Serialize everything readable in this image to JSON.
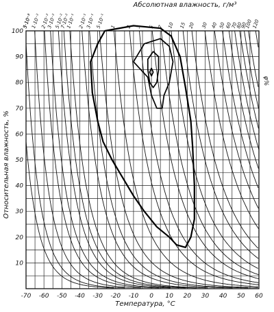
{
  "chart_data": {
    "type": "line",
    "title": "Абсолютная влажность, г/м³",
    "xlabel": "Температура, °С",
    "ylabel": "Относительная влажность, %",
    "right_label": "φ%",
    "xlim": [
      -70,
      60
    ],
    "ylim": [
      0,
      100
    ],
    "x_ticks": [
      -70,
      -60,
      -50,
      -40,
      -30,
      -20,
      -10,
      0,
      10,
      20,
      30,
      40,
      50,
      60
    ],
    "y_ticks": [
      10,
      20,
      30,
      40,
      50,
      60,
      70,
      80,
      90,
      100
    ],
    "x_tick_labels": [
      "-70",
      "-60",
      "-50",
      "-40",
      "-30",
      "-20",
      "-10",
      "0",
      "10",
      "20",
      "30",
      "40",
      "50",
      "60"
    ],
    "y_tick_labels": [
      "10",
      "20",
      "30",
      "40",
      "50",
      "60",
      "70",
      "80",
      "90",
      "100"
    ],
    "grid": true,
    "absolute_humidity_lines": [
      {
        "label": "3·10⁻³",
        "value": 0.003
      },
      {
        "label": "5·10⁻³",
        "value": 0.005
      },
      {
        "label": "1·10⁻²",
        "value": 0.01
      },
      {
        "label": "2·10⁻²",
        "value": 0.02
      },
      {
        "label": "3·10⁻²",
        "value": 0.03
      },
      {
        "label": "5·10⁻²",
        "value": 0.05
      },
      {
        "label": "7·10⁻²",
        "value": 0.07
      },
      {
        "label": "1·10⁻¹",
        "value": 0.1
      },
      {
        "label": "2·10⁻¹",
        "value": 0.2
      },
      {
        "label": "3·10⁻¹",
        "value": 0.3
      },
      {
        "label": "5·10⁻¹",
        "value": 0.5
      },
      {
        "label": "1",
        "value": 1
      },
      {
        "label": "2",
        "value": 2
      },
      {
        "label": "3",
        "value": 3
      },
      {
        "label": "5",
        "value": 5
      },
      {
        "label": "7",
        "value": 7
      },
      {
        "label": "10",
        "value": 10
      },
      {
        "label": "15",
        "value": 15
      },
      {
        "label": "20",
        "value": 20
      },
      {
        "label": "30",
        "value": 30
      },
      {
        "label": "40",
        "value": 40
      },
      {
        "label": "50",
        "value": 50
      },
      {
        "label": "60",
        "value": 60
      },
      {
        "label": "70",
        "value": 70
      },
      {
        "label": "80",
        "value": 80
      },
      {
        "label": "90",
        "value": 90
      },
      {
        "label": "100",
        "value": 100
      },
      {
        "label": "120",
        "value": 120
      }
    ],
    "contours": [
      {
        "name": "outer",
        "points": [
          [
            -26,
            100
          ],
          [
            -30,
            95
          ],
          [
            -34,
            88
          ],
          [
            -33,
            76
          ],
          [
            -30,
            65
          ],
          [
            -27,
            57
          ],
          [
            -22,
            50
          ],
          [
            -16,
            43
          ],
          [
            -10,
            36
          ],
          [
            -4,
            30
          ],
          [
            3,
            24
          ],
          [
            10,
            20
          ],
          [
            14,
            17
          ],
          [
            19,
            16
          ],
          [
            22,
            20
          ],
          [
            24,
            27
          ],
          [
            24,
            40
          ],
          [
            23,
            55
          ],
          [
            22,
            65
          ],
          [
            19,
            78
          ],
          [
            16,
            90
          ],
          [
            11,
            98
          ],
          [
            5,
            101
          ],
          [
            -10,
            102
          ],
          [
            -26,
            100
          ]
        ]
      },
      {
        "name": "middle",
        "points": [
          [
            -10,
            88
          ],
          [
            -4,
            95
          ],
          [
            5,
            97
          ],
          [
            10,
            94
          ],
          [
            12,
            88
          ],
          [
            10,
            80
          ],
          [
            7,
            75
          ],
          [
            6,
            70
          ],
          [
            3,
            70
          ],
          [
            0,
            75
          ],
          [
            -2,
            82
          ],
          [
            -10,
            88
          ]
        ]
      },
      {
        "name": "inner",
        "points": [
          [
            -2,
            89
          ],
          [
            1,
            92
          ],
          [
            4,
            90
          ],
          [
            4,
            85
          ],
          [
            3,
            80
          ],
          [
            1,
            78
          ],
          [
            -1,
            80
          ],
          [
            -2,
            85
          ],
          [
            -2,
            89
          ]
        ]
      },
      {
        "name": "core",
        "points": [
          [
            -1,
            84
          ],
          [
            0,
            85.5
          ],
          [
            1,
            84
          ],
          [
            0,
            82.5
          ],
          [
            -1,
            84
          ]
        ]
      }
    ]
  }
}
